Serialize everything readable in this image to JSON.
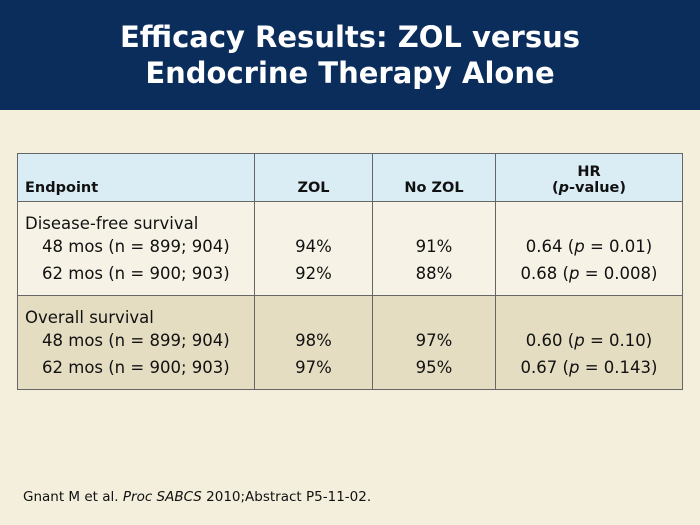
{
  "header": {
    "title_lines": [
      "Efficacy Results: ZOL versus",
      "Endocrine Therapy Alone"
    ]
  },
  "table": {
    "columns": [
      "Endpoint",
      "ZOL",
      "No ZOL"
    ],
    "hr_header": {
      "line1": "HR",
      "line2": [
        "(",
        "p",
        "-value)"
      ]
    },
    "sections": [
      {
        "label": "Disease-free survival",
        "rows": [
          {
            "endpoint": "48 mos (n = 899; 904)",
            "zol": "94%",
            "no_zol": "91%",
            "hr": [
              "0.64 (",
              "p",
              " = 0.01)"
            ]
          },
          {
            "endpoint": "62 mos (n = 900; 903)",
            "zol": "92%",
            "no_zol": "88%",
            "hr": [
              "0.68 (",
              "p",
              " = 0.008)"
            ]
          }
        ]
      },
      {
        "label": "Overall survival",
        "rows": [
          {
            "endpoint": "48 mos (n = 899; 904)",
            "zol": "98%",
            "no_zol": "97%",
            "hr": [
              "0.60 (",
              "p",
              " = 0.10)"
            ]
          },
          {
            "endpoint": "62 mos (n = 900; 903)",
            "zol": "97%",
            "no_zol": "95%",
            "hr": [
              "0.67 (",
              "p",
              " = 0.143)"
            ]
          }
        ]
      }
    ]
  },
  "footnote": [
    "Gnant M et al. ",
    "Proc SABCS",
    " 2010;Abstract P5-11-02."
  ]
}
